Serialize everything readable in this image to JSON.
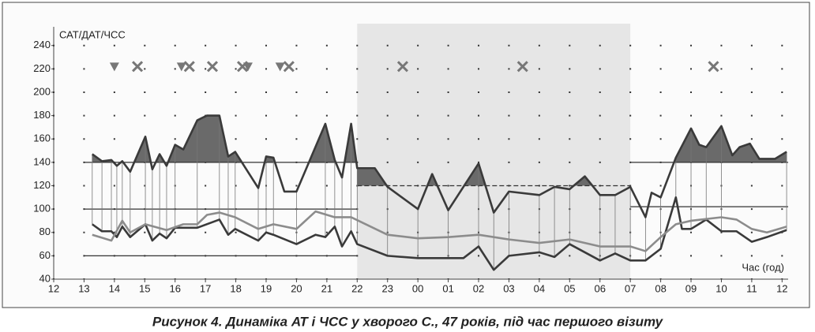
{
  "chart_data": {
    "type": "line",
    "y_label": "САТ/ДАТ/ЧСС",
    "x_label": "Час (год)",
    "caption": "Рисунок 4. Динаміка АТ і ЧСС у хворого С., 47 років, під час першого візиту",
    "xlim": [
      0,
      24.2
    ],
    "ylim": [
      40,
      256
    ],
    "xticks": [
      {
        "value": 0,
        "label": "12"
      },
      {
        "value": 1,
        "label": "13"
      },
      {
        "value": 2,
        "label": "14"
      },
      {
        "value": 3,
        "label": "15"
      },
      {
        "value": 4,
        "label": "16"
      },
      {
        "value": 5,
        "label": "17"
      },
      {
        "value": 6,
        "label": "18"
      },
      {
        "value": 7,
        "label": "19"
      },
      {
        "value": 8,
        "label": "20"
      },
      {
        "value": 9,
        "label": "21"
      },
      {
        "value": 10,
        "label": "22"
      },
      {
        "value": 11,
        "label": "23"
      },
      {
        "value": 12,
        "label": "00"
      },
      {
        "value": 13,
        "label": "01"
      },
      {
        "value": 14,
        "label": "02"
      },
      {
        "value": 15,
        "label": "03"
      },
      {
        "value": 16,
        "label": "04"
      },
      {
        "value": 17,
        "label": "05"
      },
      {
        "value": 18,
        "label": "06"
      },
      {
        "value": 19,
        "label": "07"
      },
      {
        "value": 20,
        "label": "08"
      },
      {
        "value": 21,
        "label": "09"
      },
      {
        "value": 22,
        "label": "10"
      },
      {
        "value": 23,
        "label": "11"
      },
      {
        "value": 24,
        "label": "12"
      }
    ],
    "yticks": [
      40,
      60,
      80,
      100,
      120,
      140,
      160,
      180,
      200,
      220,
      240
    ],
    "grid": "dotted",
    "night_band": [
      10,
      19
    ],
    "thresholds": [
      {
        "value": 140,
        "from": 1,
        "to": 10,
        "fill": "sbp"
      },
      {
        "value": 120,
        "from": 10,
        "to": 19,
        "fill": "sbp",
        "dashed": true
      },
      {
        "value": 140,
        "from": 19,
        "to": 24.2,
        "fill": "sbp"
      },
      {
        "value": 100,
        "from": 1,
        "to": 10
      },
      {
        "value": 60,
        "from": 1,
        "to": 10
      },
      {
        "value": 102,
        "from": 19,
        "to": 24.2
      }
    ],
    "series": [
      {
        "id": "sbp",
        "color": "#3a3a3a",
        "width": 2.6,
        "x": [
          1.27,
          1.59,
          1.9,
          2.08,
          2.26,
          2.52,
          3.02,
          3.25,
          3.49,
          3.72,
          4.0,
          4.27,
          4.73,
          5.05,
          5.46,
          5.75,
          5.98,
          6.74,
          7.0,
          7.24,
          7.6,
          8.0,
          8.95,
          9.26,
          9.5,
          9.8,
          10.0,
          10.58,
          11.0,
          12.0,
          12.47,
          13.0,
          14.0,
          14.5,
          15.0,
          16.0,
          16.5,
          17.0,
          17.5,
          18.0,
          18.5,
          19.0,
          19.5,
          19.7,
          20.0,
          20.5,
          21.0,
          21.27,
          21.5,
          22.0,
          22.36,
          22.6,
          22.94,
          23.25,
          23.77,
          24.15
        ],
        "values": [
          147,
          141,
          142,
          137,
          141,
          132,
          162,
          134,
          147,
          137,
          155,
          151,
          176,
          180,
          180,
          145,
          149,
          118,
          145,
          144,
          115,
          115,
          173,
          142,
          127,
          173,
          135,
          135,
          119,
          100,
          130,
          99,
          139,
          97,
          115,
          112,
          119,
          117,
          128,
          112,
          112,
          119,
          93,
          114,
          110,
          144,
          169,
          155,
          153,
          171,
          146,
          153,
          156,
          143,
          143,
          149
        ]
      },
      {
        "id": "dbp",
        "color": "#3a3a3a",
        "width": 2.6,
        "x": [
          1.27,
          1.59,
          1.9,
          2.08,
          2.26,
          2.52,
          3.02,
          3.25,
          3.49,
          3.72,
          4.0,
          4.73,
          5.46,
          5.75,
          5.98,
          6.74,
          7.0,
          7.24,
          8.0,
          8.63,
          8.95,
          9.26,
          9.5,
          9.8,
          10.0,
          11.0,
          12.0,
          13.0,
          13.5,
          14.0,
          14.5,
          15.0,
          16.0,
          16.5,
          17.0,
          18.0,
          18.5,
          19.0,
          19.5,
          20.0,
          20.5,
          20.7,
          21.0,
          21.5,
          22.0,
          22.5,
          23.0,
          23.5,
          24.15
        ],
        "values": [
          87,
          81,
          81,
          76,
          85,
          76,
          87,
          73,
          79,
          75,
          84,
          84,
          91,
          78,
          83,
          73,
          80,
          78,
          70,
          78,
          76,
          85,
          68,
          81,
          70,
          60,
          58,
          58,
          58,
          68,
          48,
          60,
          63,
          59,
          70,
          56,
          62,
          56,
          56,
          66,
          110,
          83,
          83,
          91,
          81,
          81,
          72,
          76,
          82
        ]
      },
      {
        "id": "hr",
        "color": "#8c8c8c",
        "width": 2.6,
        "x": [
          1.27,
          1.9,
          2.26,
          2.52,
          3.02,
          3.72,
          4.27,
          4.73,
          5.05,
          5.46,
          5.98,
          6.74,
          7.24,
          8.0,
          8.63,
          9.26,
          9.8,
          11.0,
          12.0,
          13.0,
          14.0,
          15.0,
          16.0,
          17.0,
          18.0,
          19.0,
          19.5,
          20.0,
          20.5,
          21.0,
          22.0,
          22.5,
          23.0,
          23.5,
          24.15
        ],
        "values": [
          78,
          73,
          90,
          80,
          87,
          82,
          87,
          87,
          95,
          97,
          93,
          83,
          87,
          83,
          98,
          93,
          93,
          78,
          75,
          76,
          78,
          74,
          71,
          74,
          68,
          68,
          64,
          76,
          87,
          90,
          93,
          91,
          83,
          80,
          85
        ]
      }
    ],
    "markers": {
      "y": 222,
      "color": "#777",
      "triangle_x": [
        2.0,
        4.21,
        6.4,
        7.46
      ],
      "cross_x": [
        2.76,
        4.47,
        5.23,
        6.22,
        7.75,
        11.5,
        15.45,
        21.74
      ]
    }
  }
}
